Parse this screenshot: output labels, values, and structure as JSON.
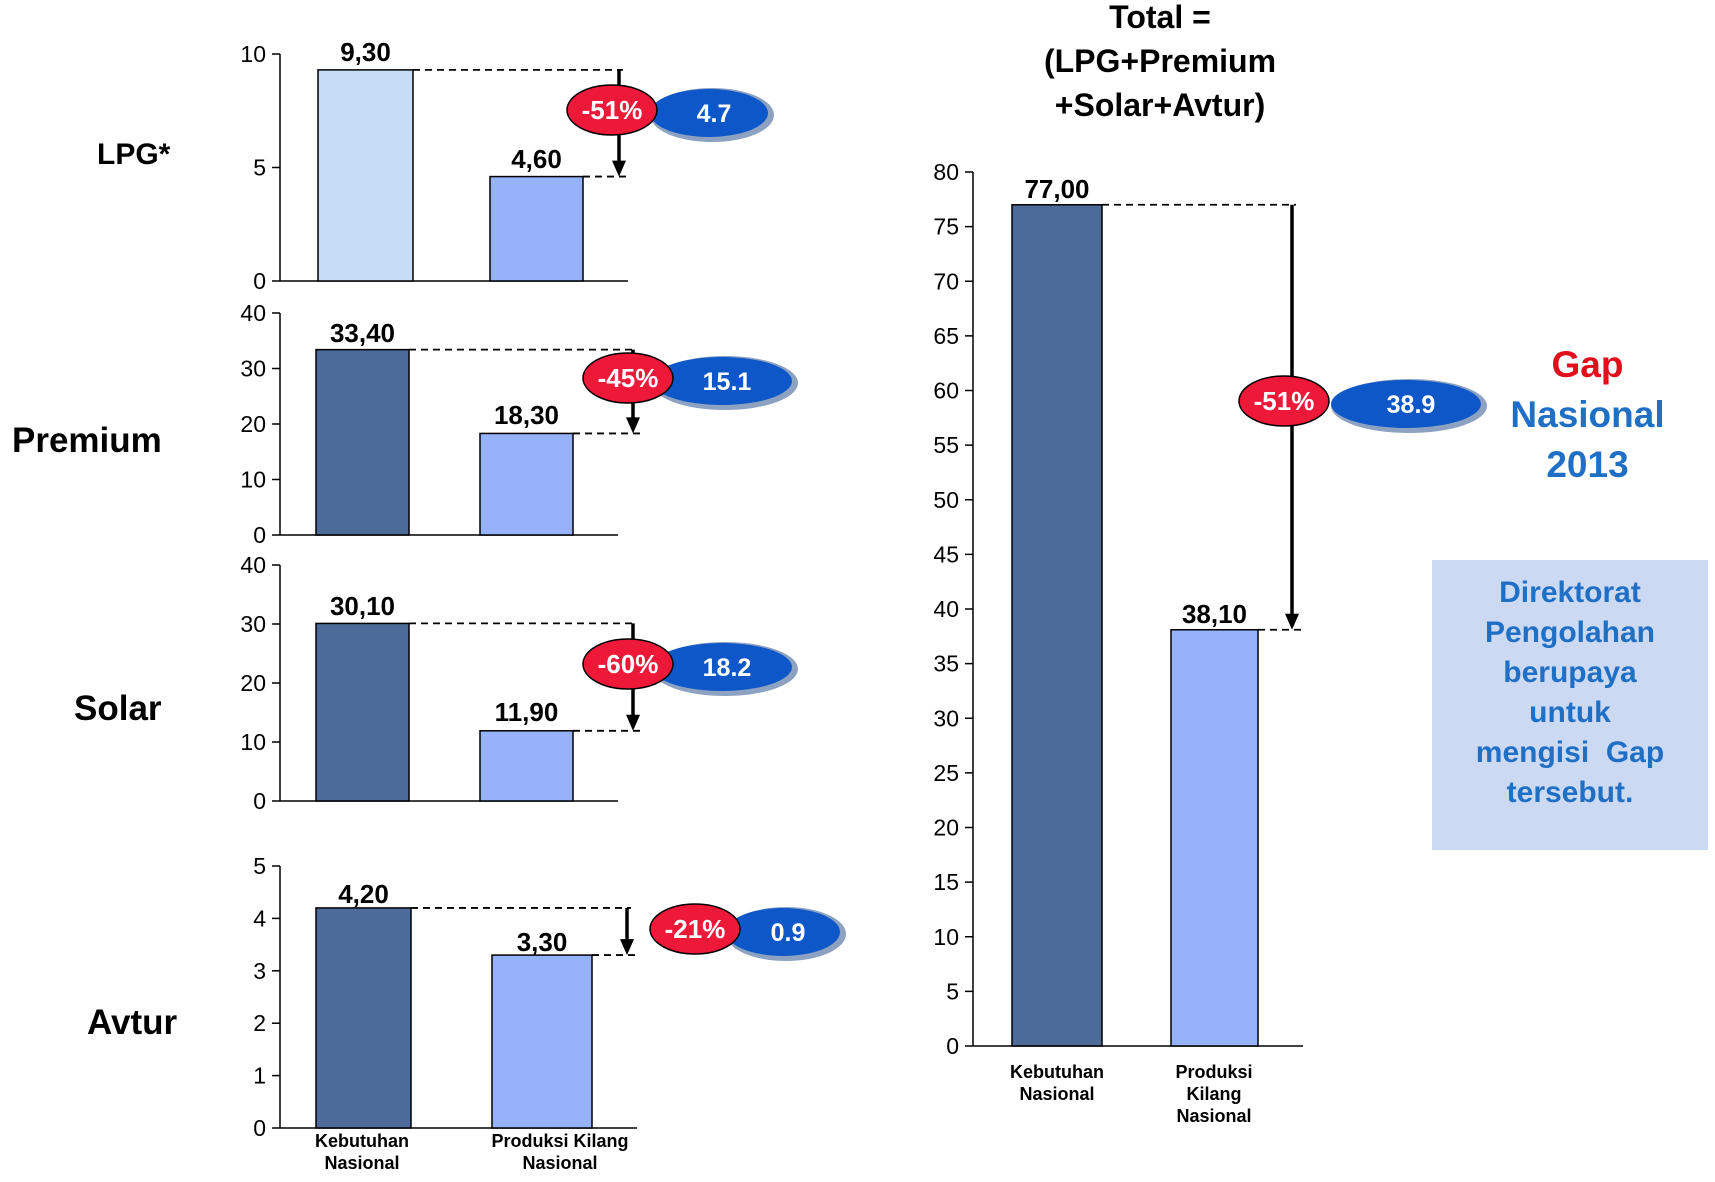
{
  "colors": {
    "demand": "#4c6b98",
    "demand_light": "#c6dcf6",
    "production": "#96b2fb",
    "pct_badge": "#ee1839",
    "gap_badge": "#0e57c8",
    "gap_title": "#e10e1b",
    "gap_blue": "#1f6fc4",
    "note_bg": "#ccd9f3"
  },
  "side_labels": [
    "LPG*",
    "Premium",
    "Solar",
    "Avtur"
  ],
  "bottom_category_labels": [
    "Kebutuhan\nNasional",
    "Produksi Kilang\nNasional"
  ],
  "chart_data": [
    {
      "type": "bar",
      "name_label": "LPG*",
      "categories": [
        "Kebutuhan Nasional",
        "Produksi Kilang Nasional"
      ],
      "values": [
        9.3,
        4.6
      ],
      "value_labels": [
        "9,30",
        "4,60"
      ],
      "ylim": [
        0,
        10
      ],
      "yticks": [
        "0",
        "5",
        "10"
      ],
      "first_bar_color": "demand_light",
      "gap_percent": "-51%",
      "gap_value": "4.7"
    },
    {
      "type": "bar",
      "name_label": "Premium",
      "categories": [
        "Kebutuhan Nasional",
        "Produksi Kilang Nasional"
      ],
      "values": [
        33.4,
        18.3
      ],
      "value_labels": [
        "33,40",
        "18,30"
      ],
      "ylim": [
        0,
        40
      ],
      "yticks": [
        "0",
        "10",
        "20",
        "30",
        "40"
      ],
      "first_bar_color": "demand",
      "gap_percent": "-45%",
      "gap_value": "15.1"
    },
    {
      "type": "bar",
      "name_label": "Solar",
      "categories": [
        "Kebutuhan Nasional",
        "Produksi Kilang Nasional"
      ],
      "values": [
        30.1,
        11.9
      ],
      "value_labels": [
        "30,10",
        "11,90"
      ],
      "ylim": [
        0,
        40
      ],
      "yticks": [
        "0",
        "10",
        "20",
        "30",
        "40"
      ],
      "first_bar_color": "demand",
      "gap_percent": "-60%",
      "gap_value": "18.2"
    },
    {
      "type": "bar",
      "name_label": "Avtur",
      "categories": [
        "Kebutuhan Nasional",
        "Produksi Kilang Nasional"
      ],
      "values": [
        4.2,
        3.3
      ],
      "value_labels": [
        "4,20",
        "3,30"
      ],
      "ylim": [
        0,
        5
      ],
      "yticks": [
        "0",
        "1",
        "2",
        "3",
        "4",
        "5"
      ],
      "first_bar_color": "demand",
      "gap_percent": "-21%",
      "gap_value": "0.9"
    },
    {
      "type": "bar",
      "title": [
        "Total =",
        "(LPG+Premium",
        "+Solar+Avtur)"
      ],
      "categories": [
        "Kebutuhan Nasional",
        "Produksi Kilang Nasional"
      ],
      "category_labels": [
        [
          "Kebutuhan",
          "Nasional"
        ],
        [
          "Produksi",
          "Kilang",
          "Nasional"
        ]
      ],
      "values": [
        77.0,
        38.1
      ],
      "value_labels": [
        "77,00",
        "38,10"
      ],
      "ylim": [
        0,
        80
      ],
      "yticks": [
        "0",
        "5",
        "10",
        "15",
        "20",
        "25",
        "30",
        "35",
        "40",
        "45",
        "50",
        "55",
        "60",
        "65",
        "70",
        "75",
        "80"
      ],
      "first_bar_color": "demand",
      "gap_percent": "-51%",
      "gap_value": "38.9"
    }
  ],
  "gap_title": {
    "line1": "Gap",
    "line2": "Nasional",
    "line3": "2013"
  },
  "note": {
    "lines": [
      "Direktorat",
      "Pengolahan",
      "berupaya",
      "untuk",
      "mengisi  Gap",
      "tersebut."
    ]
  }
}
